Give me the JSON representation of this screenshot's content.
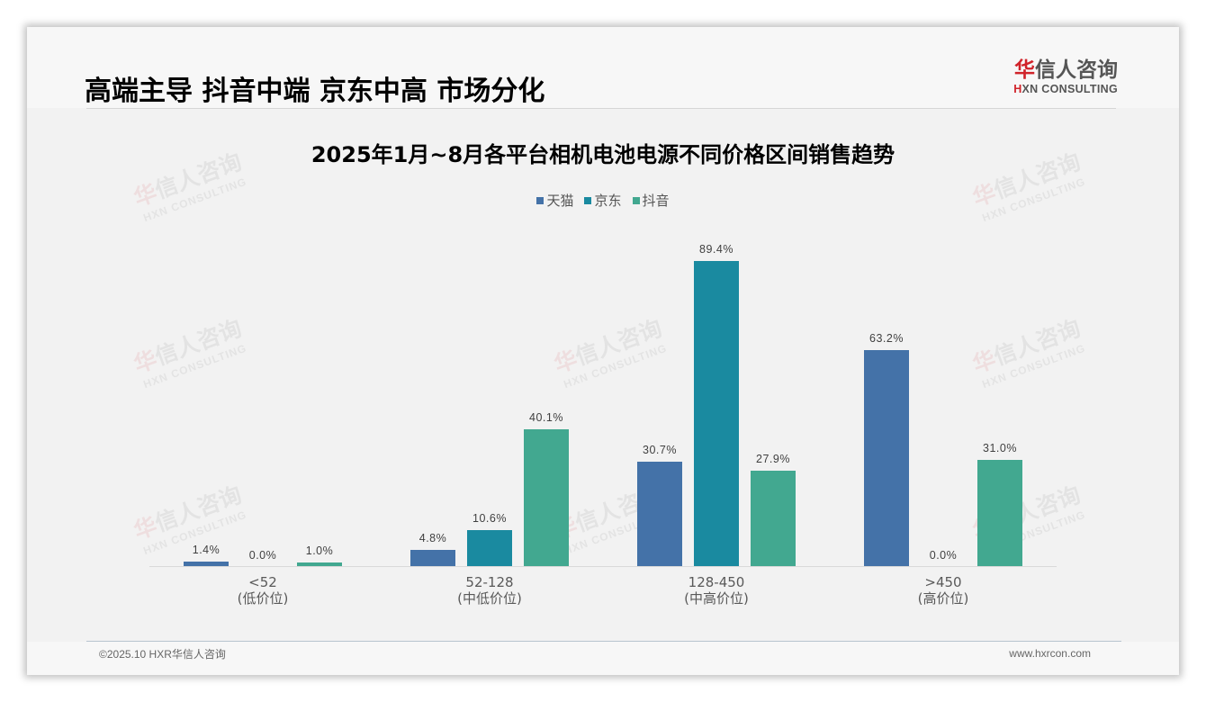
{
  "header": {
    "headline": "高端主导 抖音中端 京东中高 市场分化",
    "logo": {
      "cn_red": "华",
      "cn_rest": "信人咨询",
      "en_red": "H",
      "en_rest": "XN CONSULTING"
    }
  },
  "watermark": {
    "cn_red": "华",
    "cn_rest": "信人咨询",
    "en": "HXN CONSULTING"
  },
  "footer": {
    "copyright": "©2025.10 HXR华信人咨询",
    "website": "www.hxrcon.com"
  },
  "colors": {
    "tmall": "#4472a8",
    "jd": "#1a8aa0",
    "douyin": "#42a890",
    "axis": "#d9d9d9"
  },
  "chart_data": {
    "type": "bar",
    "title": "2025年1月~8月各平台相机电池电源不同价格区间销售趋势",
    "xlabel": "",
    "ylabel": "",
    "ylim": [
      0,
      100
    ],
    "grid": false,
    "legend_position": "top",
    "categories": [
      "<52\n(低价位)",
      "52-128\n(中低价位)",
      "128-450\n(中高价位)",
      ">450\n(高价位)"
    ],
    "category_labels": [
      {
        "range": "<52",
        "tier": "(低价位)"
      },
      {
        "range": "52-128",
        "tier": "(中低价位)"
      },
      {
        "range": "128-450",
        "tier": "(中高价位)"
      },
      {
        "range": ">450",
        "tier": "(高价位)"
      }
    ],
    "series": [
      {
        "name": "天猫",
        "color": "#4472a8",
        "values": [
          1.4,
          4.8,
          30.7,
          63.2
        ],
        "labels": [
          "1.4%",
          "4.8%",
          "30.7%",
          "63.2%"
        ]
      },
      {
        "name": "京东",
        "color": "#1a8aa0",
        "values": [
          0.0,
          10.6,
          89.4,
          0.0
        ],
        "labels": [
          "0.0%",
          "10.6%",
          "89.4%",
          "0.0%"
        ]
      },
      {
        "name": "抖音",
        "color": "#42a890",
        "values": [
          1.0,
          40.1,
          27.9,
          31.0
        ],
        "labels": [
          "1.0%",
          "40.1%",
          "27.9%",
          "31.0%"
        ]
      }
    ]
  }
}
